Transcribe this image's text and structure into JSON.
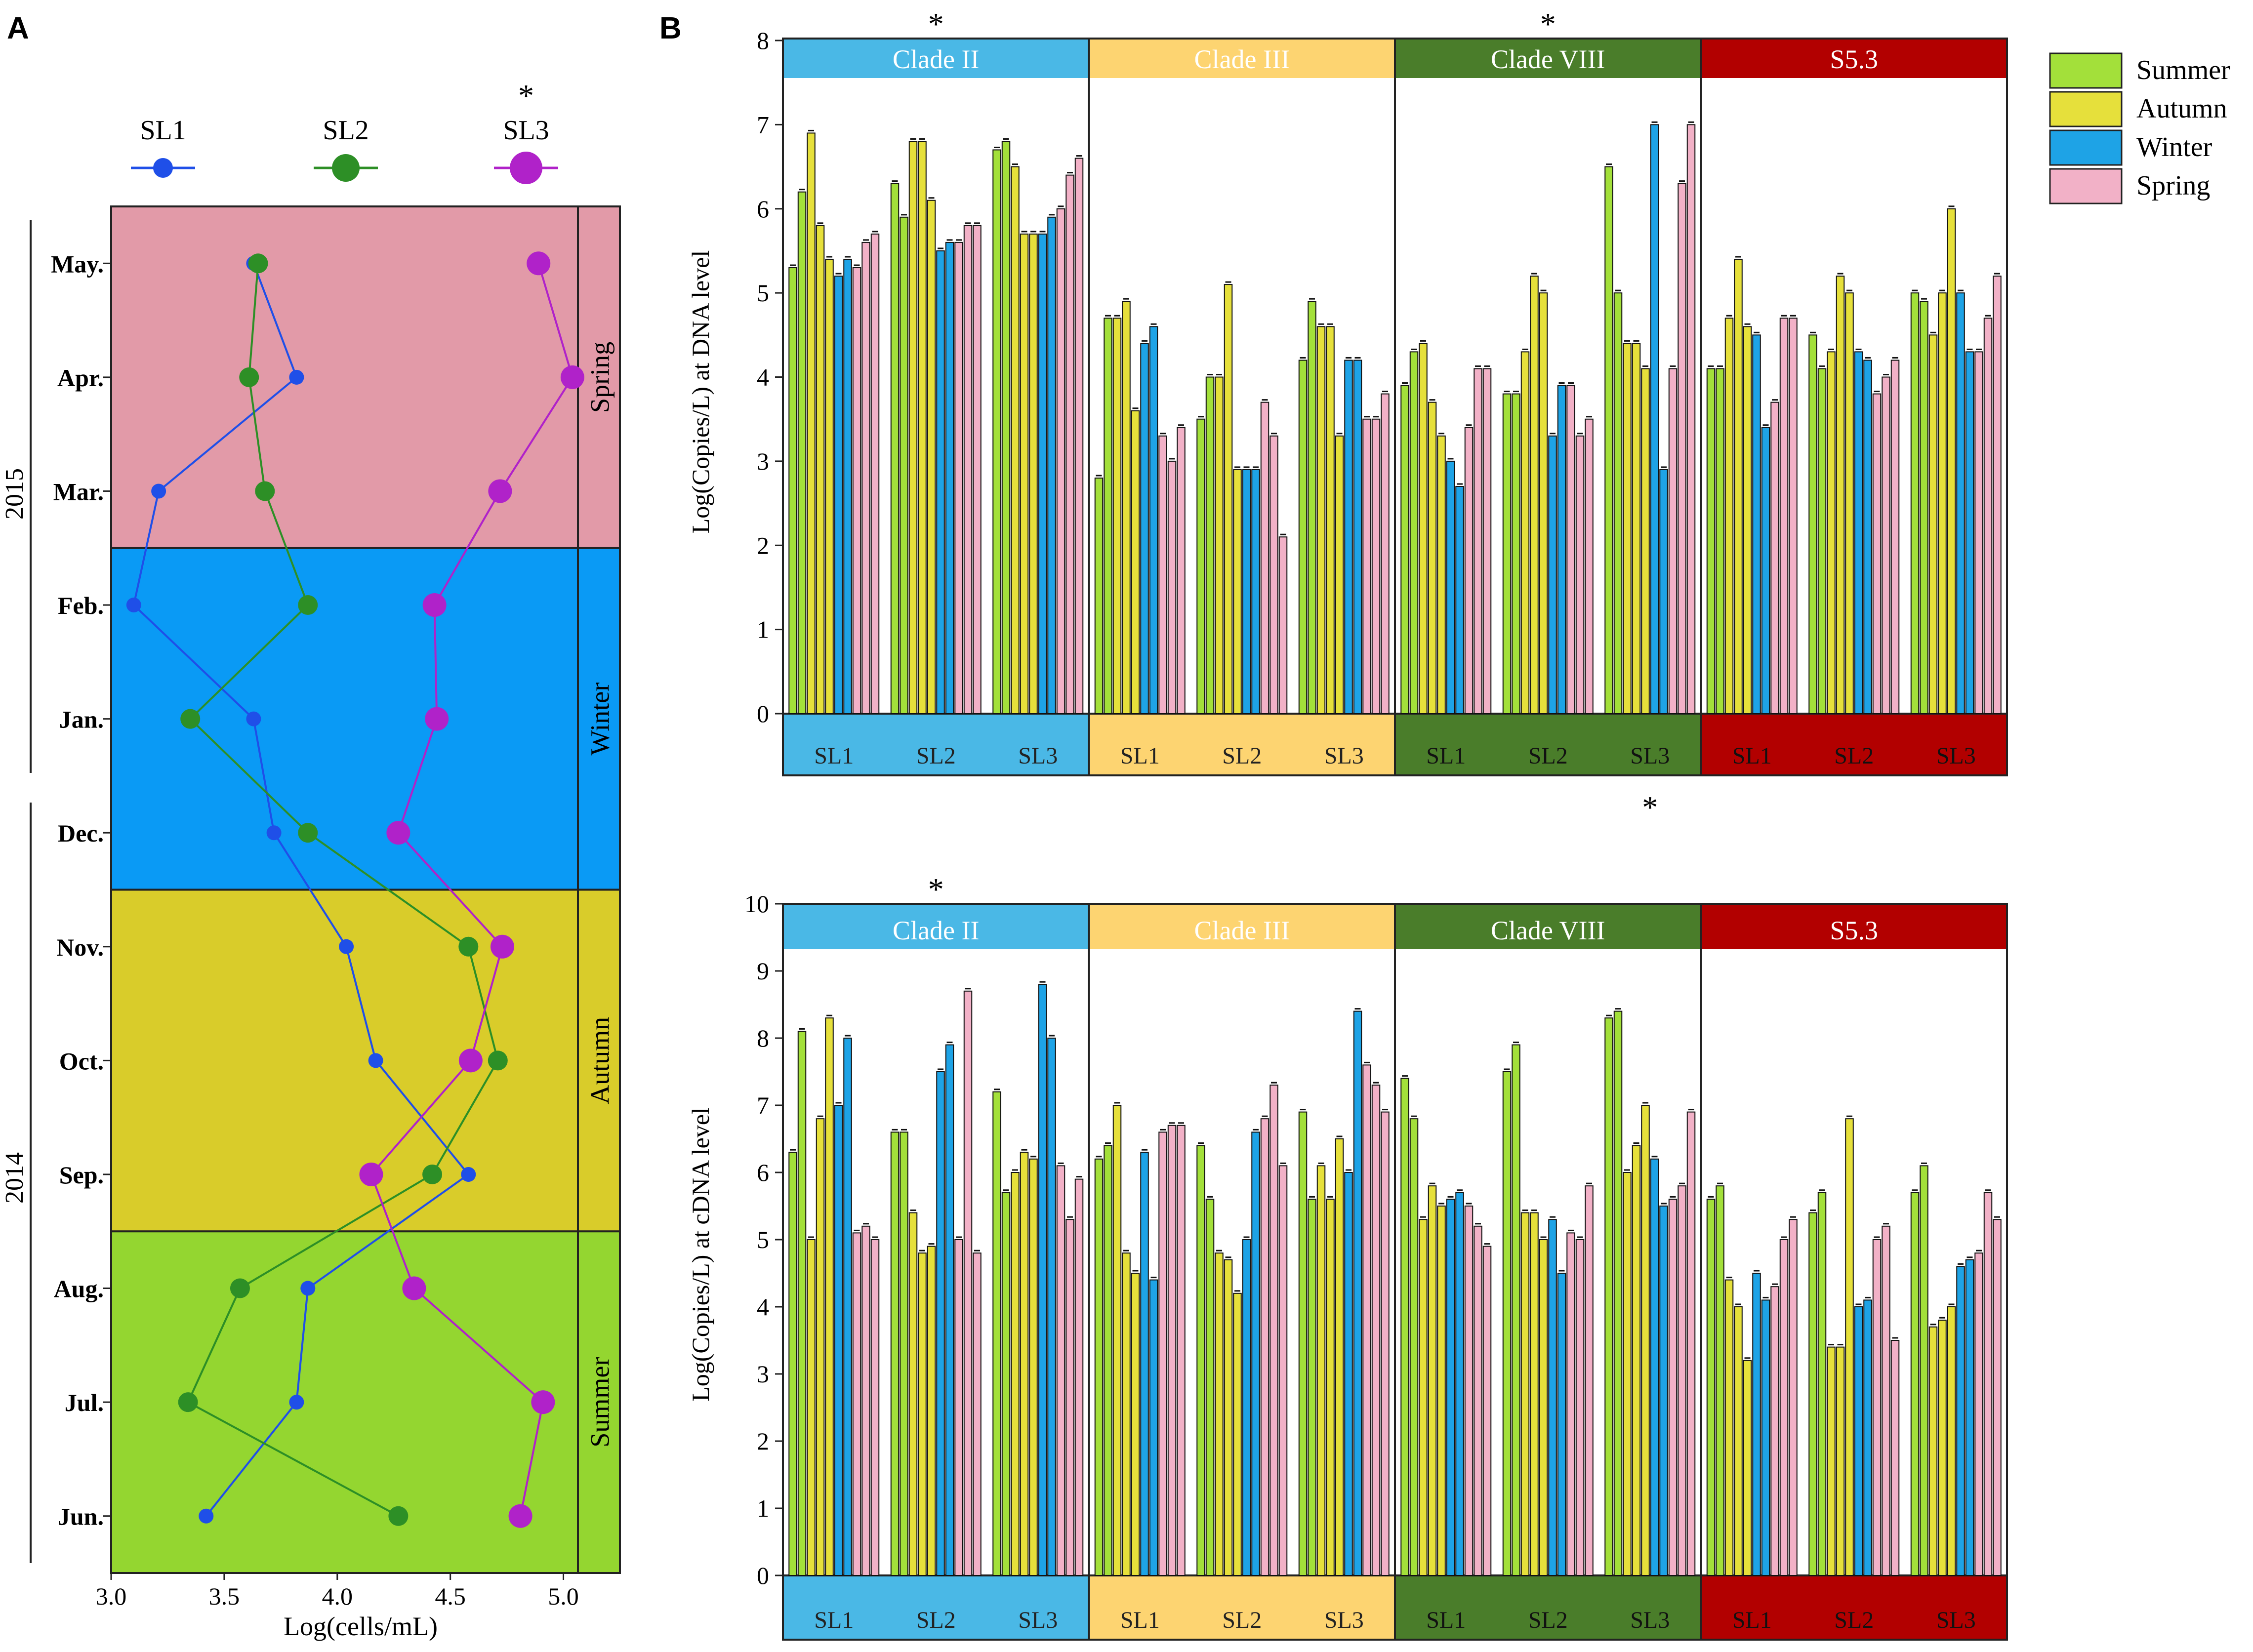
{
  "panel_labels": {
    "a": "A",
    "b": "B"
  },
  "chart_data": [
    {
      "id": "panelA",
      "type": "line",
      "title": "",
      "xlabel": "Log(cells/mL)",
      "xlim": [
        3.0,
        5.25
      ],
      "xticks": [
        3.0,
        3.5,
        4.0,
        4.5,
        5.0
      ],
      "xtick_labels": [
        "3.0",
        "3.5",
        "4.0",
        "4.5",
        "5.0"
      ],
      "months": [
        "May.",
        "Apr.",
        "Mar.",
        "Feb.",
        "Jan.",
        "Dec.",
        "Nov.",
        "Oct.",
        "Sep.",
        "Aug.",
        "Jul.",
        "Jun."
      ],
      "years": [
        "2015",
        "2014"
      ],
      "seasons": [
        {
          "label": "Spring",
          "color": "#e29aa8",
          "months": 3
        },
        {
          "label": "Winter",
          "color": "#0a9af5",
          "months": 3
        },
        {
          "label": "Autumn",
          "color": "#d9cc2a",
          "months": 3
        },
        {
          "label": "Summer",
          "color": "#94d630",
          "months": 3
        }
      ],
      "star_series": "SL3",
      "star": "*",
      "series": [
        {
          "name": "SL1",
          "color": "#1f4fe8",
          "values": [
            3.63,
            3.82,
            3.21,
            3.1,
            3.63,
            3.72,
            4.04,
            4.17,
            4.58,
            3.87,
            3.82,
            3.42
          ]
        },
        {
          "name": "SL2",
          "color": "#2d8f26",
          "values": [
            3.65,
            3.61,
            3.68,
            3.87,
            3.35,
            3.87,
            4.58,
            4.71,
            4.42,
            3.57,
            3.34,
            4.27
          ]
        },
        {
          "name": "SL3",
          "color": "#b022c9",
          "values": [
            4.89,
            5.04,
            4.72,
            4.43,
            4.44,
            4.27,
            4.73,
            4.59,
            4.15,
            4.34,
            4.91,
            4.81
          ]
        }
      ]
    },
    {
      "id": "panelB_dna",
      "type": "bar",
      "ylabel": "Log(Copies/L) at DNA level",
      "ylim": [
        0,
        8
      ],
      "yticks": [
        0,
        1,
        2,
        3,
        4,
        5,
        6,
        7,
        8
      ],
      "clades": [
        {
          "name": "Clade II",
          "color": "#4ab8e6",
          "text_color": "#ffffff",
          "star": "*"
        },
        {
          "name": "Clade III",
          "color": "#fdd471",
          "text_color": "#ffffff",
          "star": ""
        },
        {
          "name": "Clade VIII",
          "color": "#4a7d2a",
          "text_color": "#ffffff",
          "star": "*"
        },
        {
          "name": "S5.3",
          "color": "#b20000",
          "text_color": "#ffffff",
          "star": ""
        }
      ],
      "sites": [
        "SL1",
        "SL2",
        "SL3"
      ],
      "bottom_star": {
        "clade": 2,
        "site": 2,
        "text": "*"
      },
      "values": [
        [
          [
            5.3,
            6.2,
            6.9,
            5.8,
            5.4,
            5.2,
            5.4,
            5.3,
            5.6,
            5.7
          ],
          [
            6.3,
            5.9,
            6.8,
            6.8,
            6.1,
            5.5,
            5.6,
            5.6,
            5.8,
            5.8
          ],
          [
            6.7,
            6.8,
            6.5,
            5.7,
            5.7,
            5.7,
            5.9,
            6.0,
            6.4,
            6.6
          ]
        ],
        [
          [
            2.8,
            4.7,
            4.7,
            4.9,
            3.6,
            4.4,
            4.6,
            3.3,
            3.0,
            3.4
          ],
          [
            3.5,
            4.0,
            4.0,
            5.1,
            2.9,
            2.9,
            2.9,
            3.7,
            3.3,
            2.1
          ],
          [
            4.2,
            4.9,
            4.6,
            4.6,
            3.3,
            4.2,
            4.2,
            3.5,
            3.5,
            3.8
          ]
        ],
        [
          [
            3.9,
            4.3,
            4.4,
            3.7,
            3.3,
            3.0,
            2.7,
            3.4,
            4.1,
            4.1
          ],
          [
            3.8,
            3.8,
            4.3,
            5.2,
            5.0,
            3.3,
            3.9,
            3.9,
            3.3,
            3.5
          ],
          [
            6.5,
            5.0,
            4.4,
            4.4,
            4.1,
            7.0,
            2.9,
            4.1,
            6.3,
            7.0
          ]
        ],
        [
          [
            4.1,
            4.1,
            4.7,
            5.4,
            4.6,
            4.5,
            3.4,
            3.7,
            4.7,
            4.7
          ],
          [
            4.5,
            4.1,
            4.3,
            5.2,
            5.0,
            4.3,
            4.2,
            3.8,
            4.0,
            4.2
          ],
          [
            5.0,
            4.9,
            4.5,
            5.0,
            6.0,
            5.0,
            4.3,
            4.3,
            4.7,
            5.2
          ]
        ]
      ]
    },
    {
      "id": "panelB_cdna",
      "type": "bar",
      "ylabel": "Log(Copies/L) at cDNA level",
      "ylim": [
        0,
        10
      ],
      "yticks": [
        0,
        1,
        2,
        3,
        4,
        5,
        6,
        7,
        8,
        9,
        10
      ],
      "clades": [
        {
          "name": "Clade II",
          "color": "#4ab8e6",
          "text_color": "#ffffff",
          "star": "*"
        },
        {
          "name": "Clade III",
          "color": "#fdd471",
          "text_color": "#ffffff",
          "star": ""
        },
        {
          "name": "Clade VIII",
          "color": "#4a7d2a",
          "text_color": "#ffffff",
          "star": ""
        },
        {
          "name": "S5.3",
          "color": "#b20000",
          "text_color": "#ffffff",
          "star": ""
        }
      ],
      "sites": [
        "SL1",
        "SL2",
        "SL3"
      ],
      "values": [
        [
          [
            6.3,
            8.1,
            5.0,
            6.8,
            8.3,
            7.0,
            8.0,
            5.1,
            5.2,
            5.0
          ],
          [
            6.6,
            6.6,
            5.4,
            4.8,
            4.9,
            7.5,
            7.9,
            5.0,
            8.7,
            4.8
          ],
          [
            7.2,
            5.7,
            6.0,
            6.3,
            6.2,
            8.8,
            8.0,
            6.1,
            5.3,
            5.9
          ]
        ],
        [
          [
            6.2,
            6.4,
            7.0,
            4.8,
            4.5,
            6.3,
            4.4,
            6.6,
            6.7,
            6.7
          ],
          [
            6.4,
            5.6,
            4.8,
            4.7,
            4.2,
            5.0,
            6.6,
            6.8,
            7.3,
            6.1
          ],
          [
            6.9,
            5.6,
            6.1,
            5.6,
            6.5,
            6.0,
            8.4,
            7.6,
            7.3,
            6.9
          ]
        ],
        [
          [
            7.4,
            6.8,
            5.3,
            5.8,
            5.5,
            5.6,
            5.7,
            5.5,
            5.2,
            4.9
          ],
          [
            7.5,
            7.9,
            5.4,
            5.4,
            5.0,
            5.3,
            4.5,
            5.1,
            5.0,
            5.8
          ],
          [
            8.3,
            8.4,
            6.0,
            6.4,
            7.0,
            6.2,
            5.5,
            5.6,
            5.8,
            6.9
          ]
        ],
        [
          [
            5.6,
            5.8,
            4.4,
            4.0,
            3.2,
            4.5,
            4.1,
            4.3,
            5.0,
            5.3
          ],
          [
            5.4,
            5.7,
            3.4,
            3.4,
            6.8,
            4.0,
            4.1,
            5.0,
            5.2,
            3.5
          ],
          [
            5.7,
            6.1,
            3.7,
            3.8,
            4.0,
            4.6,
            4.7,
            4.8,
            5.7,
            5.3
          ]
        ]
      ]
    }
  ],
  "legend": [
    {
      "label": "Summer",
      "color": "#a3e03a"
    },
    {
      "label": "Autumn",
      "color": "#e6e03b"
    },
    {
      "label": "Winter",
      "color": "#1ea3e6"
    },
    {
      "label": "Spring",
      "color": "#f2b1c7"
    }
  ]
}
